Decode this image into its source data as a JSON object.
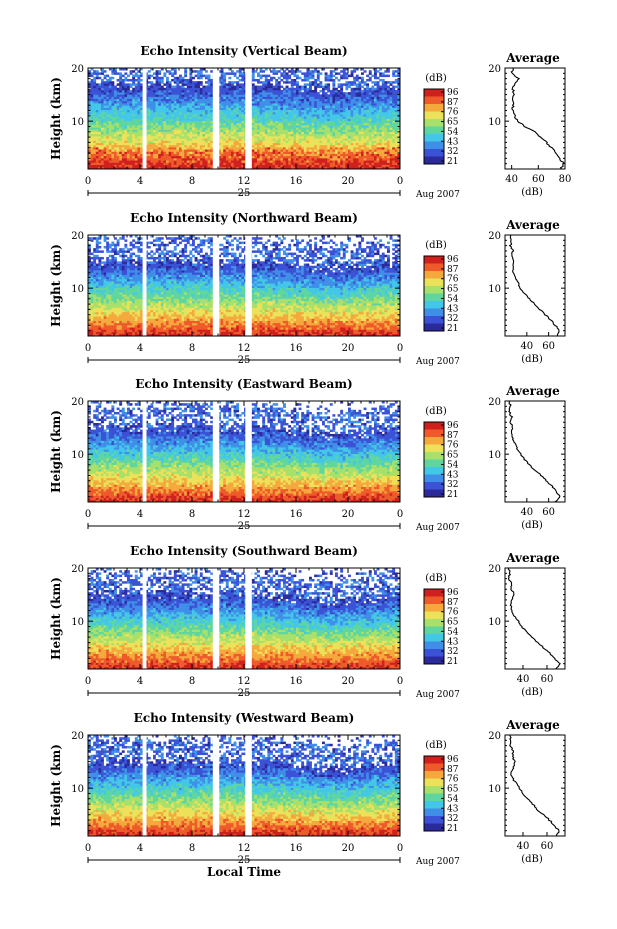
{
  "chart_data": [
    {
      "type": "heatmap",
      "title": "Echo Intensity (Vertical Beam)",
      "ylabel": "Height (km)",
      "xlim": [
        0,
        24
      ],
      "ylim": [
        1,
        20
      ],
      "x_ticks": [
        "0",
        "4",
        "8",
        "12",
        "16",
        "20",
        "0"
      ],
      "y_ticks": [
        "20",
        "10"
      ],
      "day_label": "25",
      "date_label": "Aug 2007",
      "colorbar": {
        "title": "(dB)",
        "labels": [
          "96",
          "87",
          "76",
          "65",
          "54",
          "43",
          "32",
          "21"
        ]
      },
      "gaps_hours": [
        [
          4.2,
          4.5
        ],
        [
          9.6,
          10.1
        ],
        [
          12.1,
          12.6
        ]
      ],
      "profile": {
        "title": "Average",
        "xlabel": "(dB)",
        "xlim": [
          35,
          80
        ],
        "x_ticks": [
          "40",
          "60",
          "80"
        ],
        "y_ticks": [
          "20",
          "10"
        ],
        "heights": [
          1,
          2,
          3,
          4,
          5,
          6,
          7,
          8,
          9,
          10,
          11,
          12,
          13,
          14,
          15,
          16,
          17,
          18,
          19,
          20
        ],
        "values": [
          77,
          79,
          76,
          73,
          70,
          66,
          62,
          57,
          50,
          45,
          42,
          41,
          41,
          41,
          42,
          41,
          42,
          45,
          40,
          41
        ]
      }
    },
    {
      "type": "heatmap",
      "title": "Echo Intensity (Northward Beam)",
      "ylabel": "Height (km)",
      "xlim": [
        0,
        24
      ],
      "ylim": [
        1,
        20
      ],
      "x_ticks": [
        "0",
        "4",
        "8",
        "12",
        "16",
        "20",
        "0"
      ],
      "y_ticks": [
        "20",
        "10"
      ],
      "day_label": "25",
      "date_label": "Aug 2007",
      "colorbar": {
        "title": "(dB)",
        "labels": [
          "96",
          "87",
          "76",
          "65",
          "54",
          "43",
          "32",
          "21"
        ]
      },
      "gaps_hours": [
        [
          4.2,
          4.5
        ],
        [
          9.6,
          10.1
        ],
        [
          12.1,
          12.6
        ]
      ],
      "profile": {
        "title": "Average",
        "xlabel": "(dB)",
        "xlim": [
          20,
          75
        ],
        "x_ticks": [
          "40",
          "60"
        ],
        "y_ticks": [
          "20",
          "10"
        ],
        "heights": [
          1,
          2,
          3,
          4,
          5,
          6,
          7,
          8,
          9,
          10,
          11,
          12,
          13,
          14,
          15,
          16,
          17,
          18,
          19,
          20
        ],
        "values": [
          68,
          70,
          66,
          62,
          57,
          52,
          47,
          42,
          38,
          34,
          32,
          30,
          28,
          27,
          28,
          26,
          27,
          25,
          26,
          25
        ]
      }
    },
    {
      "type": "heatmap",
      "title": "Echo Intensity (Eastward Beam)",
      "ylabel": "Height (km)",
      "xlim": [
        0,
        24
      ],
      "ylim": [
        1,
        20
      ],
      "x_ticks": [
        "0",
        "4",
        "8",
        "12",
        "16",
        "20",
        "0"
      ],
      "y_ticks": [
        "20",
        "10"
      ],
      "day_label": "25",
      "date_label": "Aug 2007",
      "colorbar": {
        "title": "(dB)",
        "labels": [
          "96",
          "87",
          "76",
          "65",
          "54",
          "43",
          "32",
          "21"
        ]
      },
      "gaps_hours": [
        [
          4.2,
          4.5
        ],
        [
          9.6,
          10.1
        ],
        [
          12.1,
          12.6
        ]
      ],
      "profile": {
        "title": "Average",
        "xlabel": "(dB)",
        "xlim": [
          20,
          75
        ],
        "x_ticks": [
          "40",
          "60"
        ],
        "y_ticks": [
          "20",
          "10"
        ],
        "heights": [
          1,
          2,
          3,
          4,
          5,
          6,
          7,
          8,
          9,
          10,
          11,
          12,
          13,
          14,
          15,
          16,
          17,
          18,
          19,
          20
        ],
        "values": [
          66,
          70,
          67,
          63,
          58,
          53,
          47,
          42,
          38,
          34,
          31,
          29,
          27,
          26,
          27,
          25,
          26,
          24,
          25,
          24
        ]
      }
    },
    {
      "type": "heatmap",
      "title": "Echo Intensity (Southward Beam)",
      "ylabel": "Height (km)",
      "xlim": [
        0,
        24
      ],
      "ylim": [
        1,
        20
      ],
      "x_ticks": [
        "0",
        "4",
        "8",
        "12",
        "16",
        "20",
        "0"
      ],
      "y_ticks": [
        "20",
        "10"
      ],
      "day_label": "25",
      "date_label": "Aug 2007",
      "colorbar": {
        "title": "(dB)",
        "labels": [
          "96",
          "87",
          "76",
          "65",
          "54",
          "43",
          "32",
          "21"
        ]
      },
      "gaps_hours": [
        [
          4.2,
          4.5
        ],
        [
          9.6,
          10.1
        ],
        [
          12.1,
          12.6
        ]
      ],
      "profile": {
        "title": "Average",
        "xlabel": "(dB)",
        "xlim": [
          25,
          75
        ],
        "x_ticks": [
          "40",
          "60"
        ],
        "y_ticks": [
          "20",
          "10"
        ],
        "heights": [
          1,
          2,
          3,
          4,
          5,
          6,
          7,
          8,
          9,
          10,
          11,
          12,
          13,
          14,
          15,
          16,
          17,
          18,
          19,
          20
        ],
        "values": [
          68,
          71,
          66,
          62,
          57,
          52,
          48,
          43,
          39,
          36,
          33,
          31,
          30,
          31,
          33,
          30,
          31,
          28,
          29,
          28
        ]
      }
    },
    {
      "type": "heatmap",
      "title": "Echo Intensity (Westward Beam)",
      "ylabel": "Height (km)",
      "xlim": [
        0,
        24
      ],
      "ylim": [
        1,
        20
      ],
      "x_ticks": [
        "0",
        "4",
        "8",
        "12",
        "16",
        "20",
        "0"
      ],
      "y_ticks": [
        "20",
        "10"
      ],
      "day_label": "25",
      "date_label": "Aug 2007",
      "xlabel": "Local Time",
      "colorbar": {
        "title": "(dB)",
        "labels": [
          "96",
          "87",
          "76",
          "65",
          "54",
          "43",
          "32",
          "21"
        ]
      },
      "gaps_hours": [
        [
          4.2,
          4.5
        ],
        [
          9.6,
          10.1
        ],
        [
          12.1,
          12.6
        ]
      ],
      "profile": {
        "title": "Average",
        "xlabel": "(dB)",
        "xlim": [
          25,
          75
        ],
        "x_ticks": [
          "40",
          "60"
        ],
        "y_ticks": [
          "20",
          "10"
        ],
        "heights": [
          1,
          2,
          3,
          4,
          5,
          6,
          7,
          8,
          9,
          10,
          11,
          12,
          13,
          14,
          15,
          16,
          17,
          18,
          19,
          20
        ],
        "values": [
          68,
          70,
          66,
          62,
          57,
          52,
          48,
          44,
          40,
          37,
          34,
          31,
          30,
          32,
          33,
          31,
          32,
          29,
          30,
          29
        ]
      }
    }
  ],
  "colors": {
    "scale": [
      "#2b2a9a",
      "#3b52d6",
      "#3f8fe8",
      "#43c7e8",
      "#5fd6a0",
      "#a7e06a",
      "#ece25a",
      "#f5a83c",
      "#ef5a2a",
      "#d0201e"
    ]
  }
}
